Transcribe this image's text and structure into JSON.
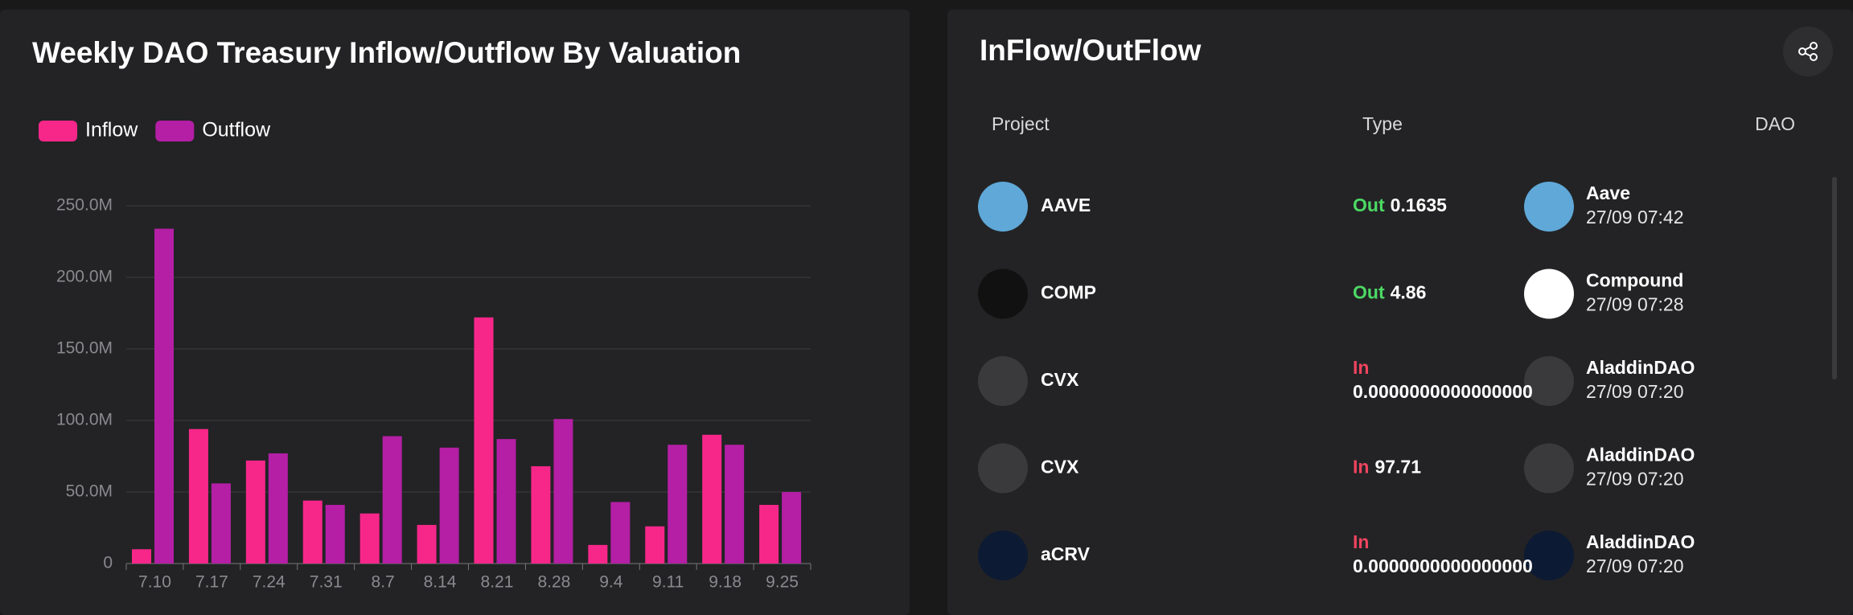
{
  "chart_data": {
    "type": "bar",
    "title": "Weekly DAO Treasury Inflow/Outflow By Valuation",
    "categories": [
      "7.10",
      "7.17",
      "7.24",
      "7.31",
      "8.7",
      "8.14",
      "8.21",
      "8.28",
      "9.4",
      "9.11",
      "9.18",
      "9.25"
    ],
    "series": [
      {
        "name": "Inflow",
        "color": "#f7278a",
        "values": [
          10000000,
          94000000,
          72000000,
          44000000,
          35000000,
          27000000,
          172000000,
          68000000,
          13000000,
          26000000,
          90000000,
          41000000
        ]
      },
      {
        "name": "Outflow",
        "color": "#b41fa5",
        "values": [
          234000000,
          56000000,
          77000000,
          41000000,
          89000000,
          81000000,
          87000000,
          101000000,
          43000000,
          83000000,
          83000000,
          50000000
        ]
      }
    ],
    "ylim": [
      0,
      250000000
    ],
    "yticks": [
      0,
      {
        "value": 50000000,
        "label": "50.0M"
      },
      {
        "value": 100000000,
        "label": "100.0M"
      },
      {
        "value": 150000000,
        "label": "150.0M"
      },
      {
        "value": 200000000,
        "label": "200.0M"
      },
      {
        "value": 250000000,
        "label": "250.0M"
      }
    ],
    "grid": true,
    "legend": "top-left"
  },
  "table": {
    "title": "InFlow/OutFlow",
    "headers": [
      "Project",
      "Type",
      "DAO"
    ],
    "rows": [
      {
        "project": "AAVE",
        "type": "Out",
        "amount": "0.1635",
        "dao": "Aave",
        "time": "27/09 07:42"
      },
      {
        "project": "COMP",
        "type": "Out",
        "amount": "4.86",
        "dao": "Compound",
        "time": "27/09 07:28"
      },
      {
        "project": "CVX",
        "type": "In",
        "amount": "0.0000000000000000",
        "dao": "AladdinDAO",
        "time": "27/09 07:20"
      },
      {
        "project": "CVX",
        "type": "In",
        "amount": "97.71",
        "dao": "AladdinDAO",
        "time": "27/09 07:20"
      },
      {
        "project": "aCRV",
        "type": "In",
        "amount": "0.0000000000000000",
        "dao": "AladdinDAO",
        "time": "27/09 07:20"
      }
    ]
  }
}
